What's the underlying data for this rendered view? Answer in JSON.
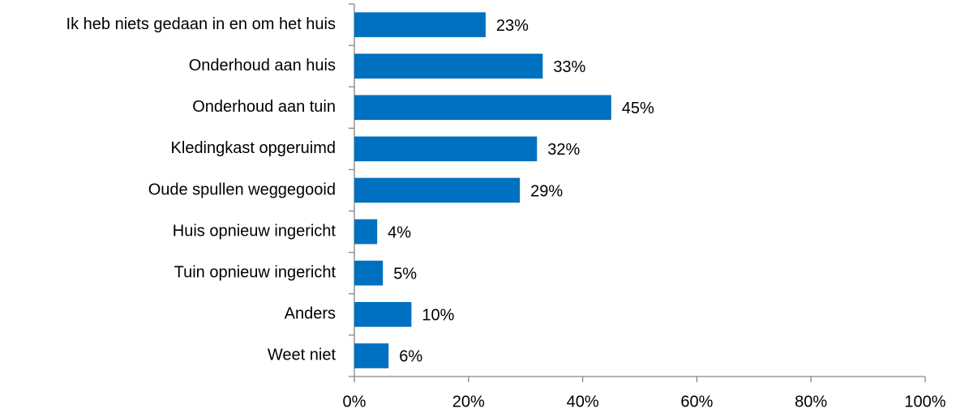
{
  "chart_data": {
    "type": "bar",
    "orientation": "horizontal",
    "categories": [
      "Ik heb niets gedaan in en om het huis",
      "Onderhoud aan huis",
      "Onderhoud aan tuin",
      "Kledingkast opgeruimd",
      "Oude spullen weggegooid",
      "Huis opnieuw ingericht",
      "Tuin opnieuw ingericht",
      "Anders",
      "Weet niet"
    ],
    "values": [
      23,
      33,
      45,
      32,
      29,
      4,
      5,
      10,
      6
    ],
    "value_labels": [
      "23%",
      "33%",
      "45%",
      "32%",
      "29%",
      "4%",
      "5%",
      "10%",
      "6%"
    ],
    "color": "#0070c0",
    "xlim": [
      0,
      100
    ],
    "xticks": [
      {
        "value": 0,
        "label": "0%"
      },
      {
        "value": 20,
        "label": "20%"
      },
      {
        "value": 40,
        "label": "40%"
      },
      {
        "value": 60,
        "label": "60%"
      },
      {
        "value": 80,
        "label": "80%"
      },
      {
        "value": 100,
        "label": "100%"
      }
    ],
    "grid": false
  }
}
